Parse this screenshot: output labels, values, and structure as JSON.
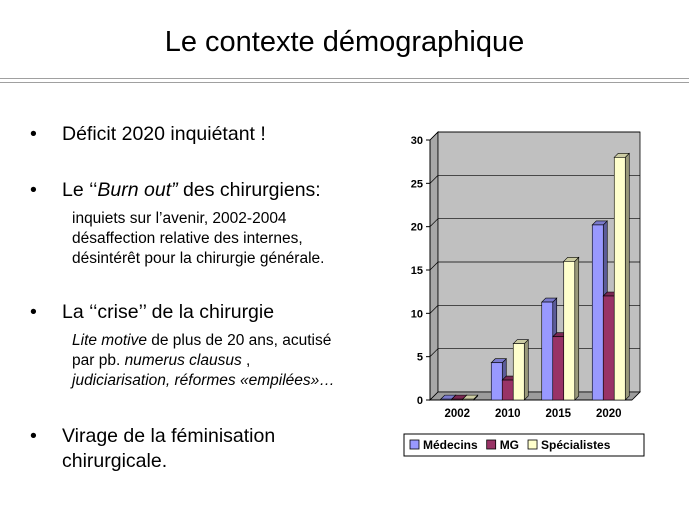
{
  "slide": {
    "title": "Le contexte démographique",
    "bullets": [
      {
        "mark": "•",
        "text": "Déficit 2020 inquiétant !"
      },
      {
        "mark": "•",
        "pre": "Le ‘‘",
        "em": "Burn out”",
        "post": " des chirurgiens:"
      },
      {
        "mark": "•",
        "text": "La ‘‘crise’’ de la chirurgie"
      },
      {
        "mark": "•",
        "line1": "Virage de la féminisation",
        "line2": "chirurgicale."
      }
    ],
    "sub_burnout": [
      "inquiets sur l’avenir, 2002-2004",
      "désaffection relative des internes,",
      "désintérêt pour la chirurgie générale."
    ],
    "sub_crise": {
      "l1_em": "Lite motive",
      "l1_rest": " de plus de 20 ans, acutisé",
      "l2_pre": "par pb. ",
      "l2_em": "numerus clausus",
      "l2_post": " ,",
      "l3": "judiciarisation, réformes «empilées»…"
    }
  },
  "chart_data": {
    "type": "bar",
    "categories": [
      "2002",
      "2010",
      "2015",
      "2020"
    ],
    "series": [
      {
        "name": "Médecins",
        "values": [
          0.1,
          4.3,
          11.3,
          20.2
        ],
        "color": "#9999ff"
      },
      {
        "name": "MG",
        "values": [
          0.1,
          2.3,
          7.3,
          12.0
        ],
        "color": "#993366"
      },
      {
        "name": "Spécialistes",
        "values": [
          0.1,
          6.5,
          16.0,
          28.0
        ],
        "color": "#ffffcc"
      }
    ],
    "yticks": [
      0,
      5,
      10,
      15,
      20,
      25,
      30
    ],
    "ylim": [
      0,
      30
    ],
    "plot_background": "#c0c0c0",
    "grid": true,
    "legend_position": "bottom"
  }
}
